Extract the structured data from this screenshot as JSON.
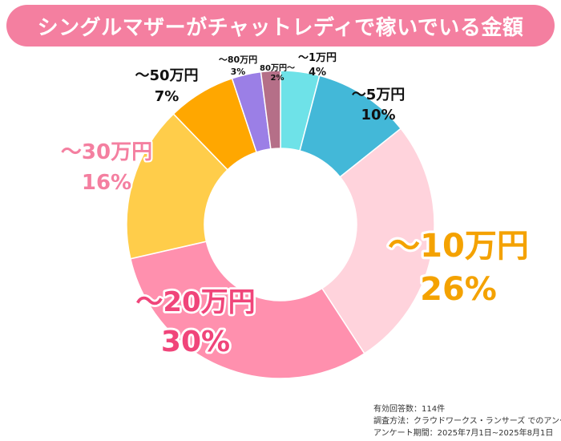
{
  "title": "シングルマザーがチャットレディで稼いでいる金額",
  "colors": {
    "title_bg": "#f47fa0",
    "title_text": "#ffffff"
  },
  "chart_data": {
    "type": "pie",
    "donut": true,
    "title": "シングルマザーがチャットレディで稼いでいる金額",
    "slices": [
      {
        "label": "～1万円",
        "value": 4,
        "percent_label": "4%",
        "color": "#6ee2e8",
        "label_color": "#111111"
      },
      {
        "label": "～5万円",
        "value": 10,
        "percent_label": "10%",
        "color": "#43b8d8",
        "label_color": "#111111"
      },
      {
        "label": "～10万円",
        "value": 26,
        "percent_label": "26%",
        "color": "#ffd3dc",
        "label_color": "#f4a200"
      },
      {
        "label": "～20万円",
        "value": 30,
        "percent_label": "30%",
        "color": "#ff90ae",
        "label_color": "#f0457a"
      },
      {
        "label": "～30万円",
        "value": 16,
        "percent_label": "16%",
        "color": "#ffcd4a",
        "label_color": "#f47fa0"
      },
      {
        "label": "～50万円",
        "value": 7,
        "percent_label": "7%",
        "color": "#ffa700",
        "label_color": "#111111"
      },
      {
        "label": "～80万円",
        "value": 3,
        "percent_label": "3%",
        "color": "#9b7fe6",
        "label_color": "#111111"
      },
      {
        "label": "80万円～",
        "value": 2,
        "percent_label": "2%",
        "color": "#b56f88",
        "label_color": "#111111"
      }
    ]
  },
  "footnotes": [
    "有効回答数：114件",
    "調査方法：クラウドワークス・ランサーズ でのアンケート",
    "アンケート期間：2025年7月1日~2025年8月1日"
  ]
}
